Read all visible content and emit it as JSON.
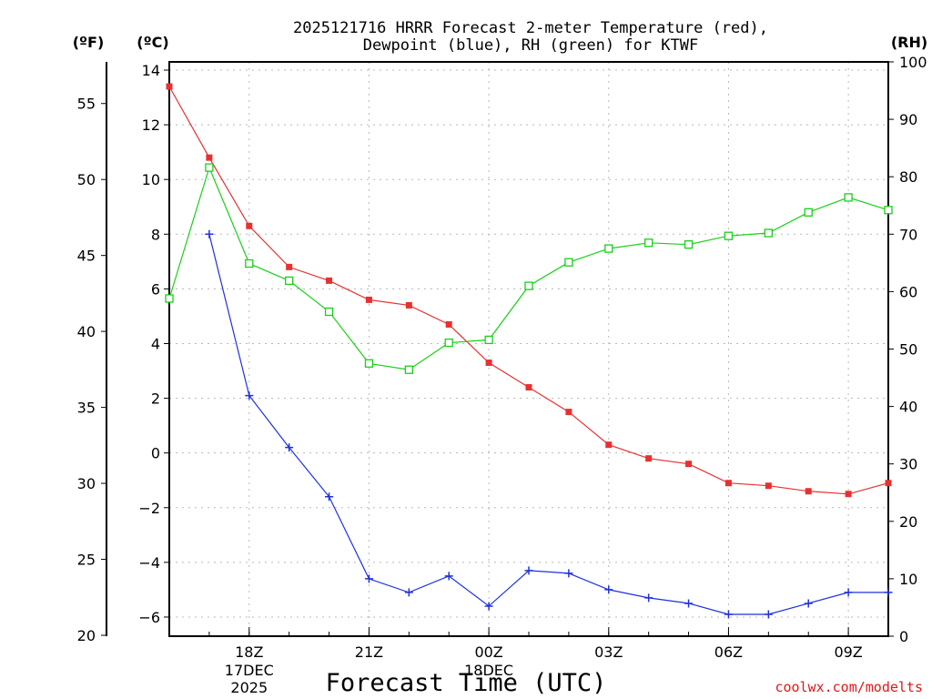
{
  "chart_data": {
    "type": "line",
    "title_line1": "2025121716 HRRR Forecast 2-meter Temperature (red),",
    "title_line2": "Dewpoint (blue), RH (green) for KTWF",
    "xlabel": "Forecast Time (UTC)",
    "credit": "coolwx.com/modelts",
    "units": {
      "fahrenheit": "(ºF)",
      "celsius": "(ºC)",
      "rh": "(RH)"
    },
    "x_hours": [
      0,
      1,
      2,
      3,
      4,
      5,
      6,
      7,
      8,
      9,
      10,
      11,
      12,
      13,
      14,
      15,
      16,
      17,
      18
    ],
    "x_ticks": [
      {
        "hour": 2,
        "label": "18Z"
      },
      {
        "hour": 5,
        "label": "21Z"
      },
      {
        "hour": 8,
        "label": "00Z"
      },
      {
        "hour": 11,
        "label": "03Z"
      },
      {
        "hour": 14,
        "label": "06Z"
      },
      {
        "hour": 17,
        "label": "09Z"
      }
    ],
    "date_labels": [
      {
        "hour": 2,
        "lines": [
          "17DEC",
          "2025"
        ]
      },
      {
        "hour": 8,
        "lines": [
          "18DEC"
        ]
      }
    ],
    "celsius_axis": {
      "min": -6.7,
      "max": 14.3,
      "ticks": [
        14,
        12,
        10,
        8,
        6,
        4,
        2,
        0,
        -2,
        -4,
        -6
      ]
    },
    "fahrenheit_ticks": [
      55,
      50,
      45,
      40,
      35,
      30,
      25,
      20
    ],
    "rh_axis": {
      "min": 0,
      "max": 100,
      "ticks": [
        100,
        90,
        80,
        70,
        60,
        50,
        40,
        30,
        20,
        10,
        0
      ]
    },
    "series": [
      {
        "name": "Temperature",
        "axis": "celsius",
        "color": "#e83030",
        "marker": "filled-square",
        "values": [
          13.4,
          10.8,
          8.3,
          6.8,
          6.3,
          5.6,
          5.4,
          4.7,
          3.3,
          2.4,
          1.5,
          0.3,
          -0.2,
          -0.4,
          -1.1,
          -1.2,
          -1.4,
          -1.5,
          -1.1
        ]
      },
      {
        "name": "Dewpoint",
        "axis": "celsius",
        "color": "#2030e0",
        "marker": "plus",
        "values": [
          null,
          8.0,
          2.1,
          0.2,
          -1.6,
          -4.6,
          -5.1,
          -4.5,
          -5.6,
          -4.3,
          -4.4,
          -5.0,
          -5.3,
          -5.5,
          -5.9,
          -5.9,
          -5.5,
          -5.1,
          -5.1
        ]
      },
      {
        "name": "RH",
        "axis": "rh",
        "color": "#18d018",
        "marker": "open-square",
        "values": [
          58.8,
          81.6,
          64.9,
          61.9,
          56.5,
          47.5,
          46.4,
          51.1,
          51.6,
          61.0,
          65.1,
          67.5,
          68.5,
          68.2,
          69.7,
          70.2,
          73.8,
          76.4,
          74.2
        ]
      }
    ]
  }
}
